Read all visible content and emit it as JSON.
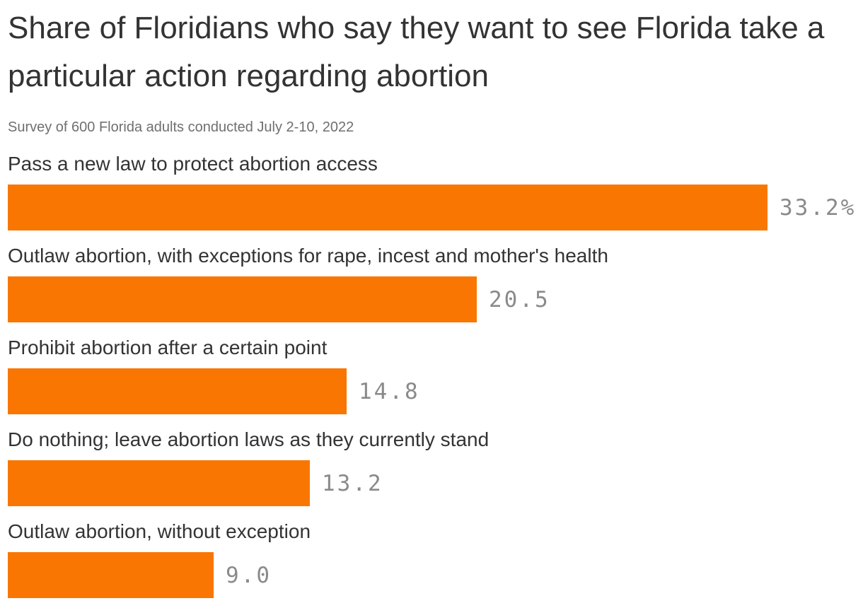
{
  "page": {
    "title": "Share of Floridians who say they want to see Florida take a particular action regarding abortion",
    "subtitle": "Survey of 600 Florida adults conducted July 2-10, 2022"
  },
  "colors": {
    "bar": "#f97602",
    "title_text": "#333335",
    "category_text": "#333335",
    "subtitle_text": "#6f6f6f",
    "value_text": "#8a8a8a",
    "background": "#ffffff"
  },
  "chart_data": {
    "type": "bar",
    "orientation": "horizontal",
    "title": "Share of Floridians who say they want to see Florida take a particular action regarding abortion",
    "subtitle": "Survey of 600 Florida adults conducted July 2-10, 2022",
    "categories": [
      "Pass a new law to protect abortion access",
      "Outlaw abortion, with exceptions for rape, incest and mother's health",
      "Prohibit abortion after a certain point",
      "Do nothing; leave abortion laws as they currently stand",
      "Outlaw abortion, without exception"
    ],
    "values": [
      33.2,
      20.5,
      14.8,
      13.2,
      9.0
    ],
    "value_labels": [
      "33.2%",
      "20.5",
      "14.8",
      "13.2",
      "9.0"
    ],
    "unit": "%",
    "xlim": [
      0,
      37
    ],
    "grid": false,
    "legend": "none",
    "axis_ticks_shown": false,
    "bar_color": "#f97602",
    "value_label_position": "right-of-bar"
  }
}
